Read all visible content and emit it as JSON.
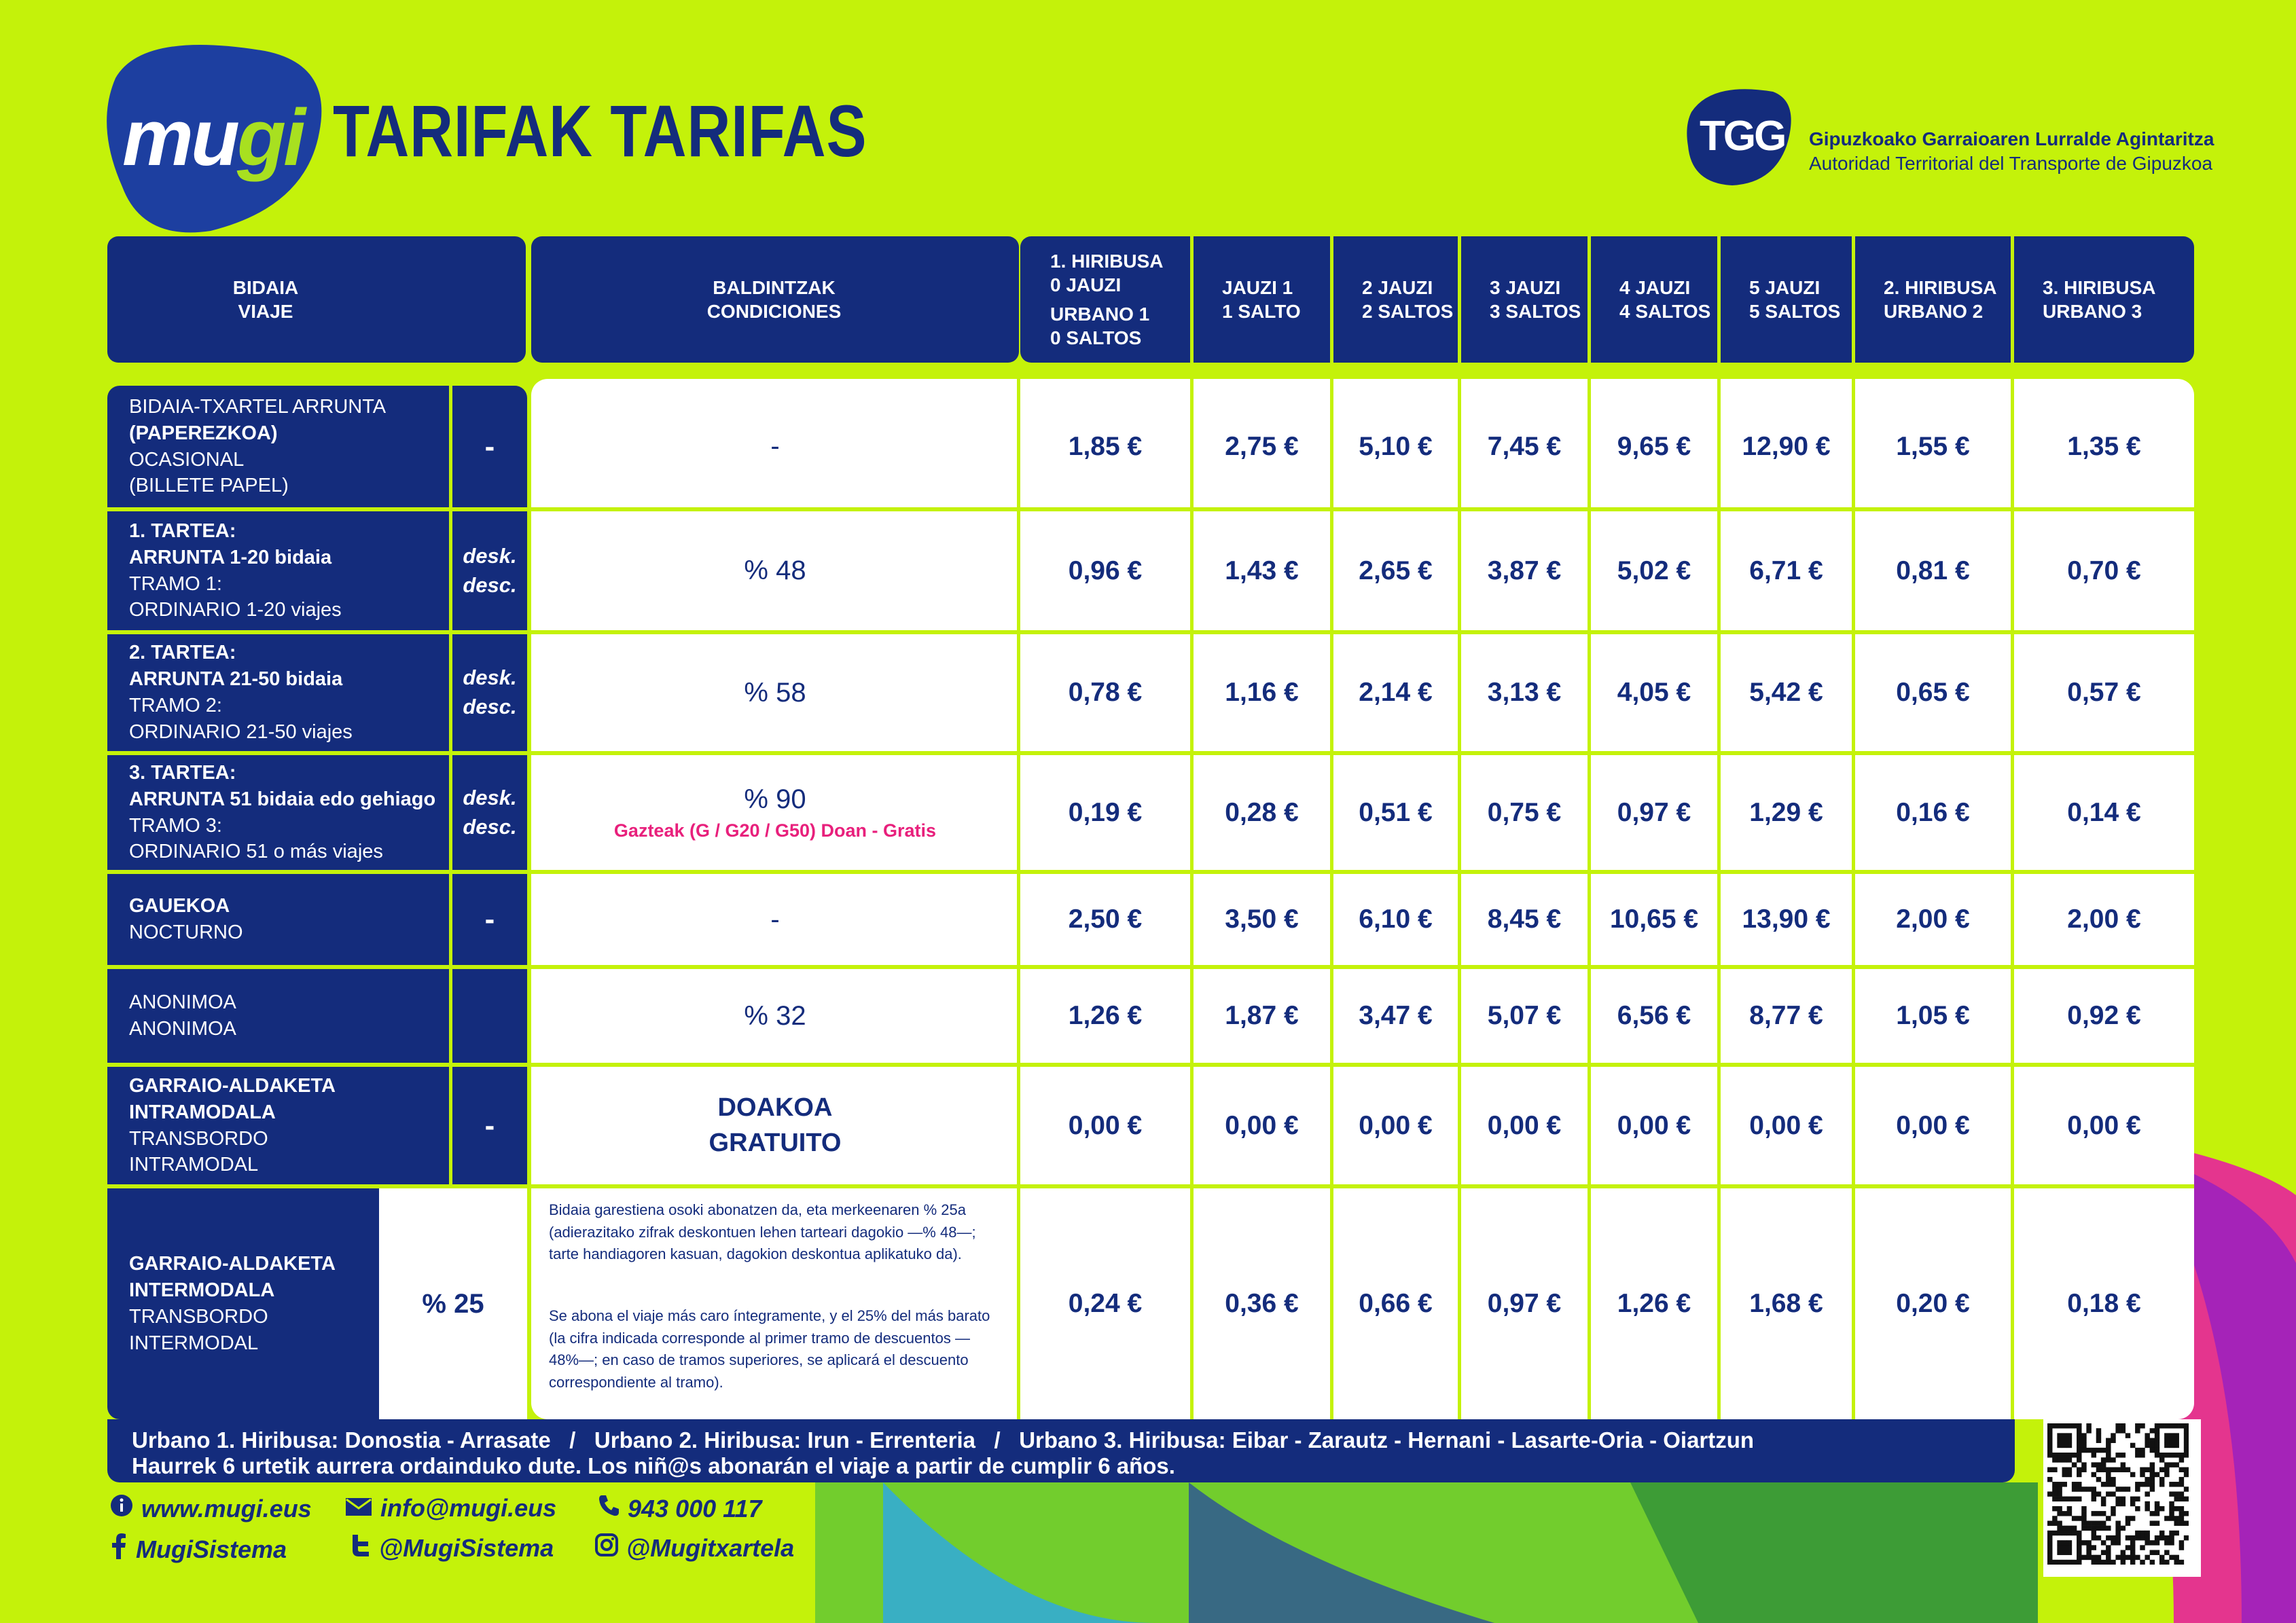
{
  "brand": {
    "logo_text_a": "mu",
    "logo_text_b": "gi",
    "title": "TARIFAK TARIFAS",
    "authority_badge": "TGG",
    "authority_name_eu": "Gipuzkoako Garraioaren Lurralde Agintaritza",
    "authority_name_es": "Autoridad Territorial del Transporte de Gipuzkoa"
  },
  "colors": {
    "background": "#c4f20a",
    "navy": "#142c7c",
    "pink": "#e8207c",
    "white": "#ffffff"
  },
  "header": {
    "travel": [
      "BIDAIA",
      "VIAJE"
    ],
    "conditions": [
      "BALDINTZAK",
      "CONDICIONES"
    ],
    "fares": [
      [
        "1. HIRIBUSA",
        "0 JAUZI",
        "URBANO 1",
        "0 SALTOS"
      ],
      [
        "JAUZI 1",
        "1 SALTO"
      ],
      [
        "2 JAUZI",
        "2 SALTOS"
      ],
      [
        "3 JAUZI",
        "3 SALTOS"
      ],
      [
        "4 JAUZI",
        "4 SALTOS"
      ],
      [
        "5 JAUZI",
        "5 SALTOS"
      ],
      [
        "2. HIRIBUSA",
        "URBANO 2"
      ],
      [
        "3. HIRIBUSA",
        "URBANO 3"
      ]
    ]
  },
  "rows": [
    {
      "travel": [
        {
          "t": "BIDAIA-TXARTEL ARRUNTA",
          "b": false
        },
        {
          "t": "(PAPEREZKOA)",
          "b": true
        },
        {
          "t": "OCASIONAL",
          "b": false
        },
        {
          "t": "(BILLETE PAPEL)",
          "b": false
        }
      ],
      "mark": [
        "-"
      ],
      "condition": "-",
      "prices": [
        "1,85 €",
        "2,75 €",
        "5,10 €",
        "7,45 €",
        "9,65 €",
        "12,90 €",
        "1,55 €",
        "1,35 €"
      ]
    },
    {
      "travel": [
        {
          "t": "1. TARTEA:",
          "b": true
        },
        {
          "t": "ARRUNTA 1-20 bidaia",
          "b": true
        },
        {
          "t": "TRAMO 1:",
          "b": false
        },
        {
          "t": "ORDINARIO 1-20 viajes",
          "b": false
        }
      ],
      "mark": [
        "desk.",
        "desc."
      ],
      "condition": "% 48",
      "prices": [
        "0,96 €",
        "1,43 €",
        "2,65 €",
        "3,87 €",
        "5,02 €",
        "6,71 €",
        "0,81 €",
        "0,70 €"
      ]
    },
    {
      "travel": [
        {
          "t": "2. TARTEA:",
          "b": true
        },
        {
          "t": "ARRUNTA 21-50 bidaia",
          "b": true
        },
        {
          "t": "TRAMO 2:",
          "b": false
        },
        {
          "t": "ORDINARIO 21-50 viajes",
          "b": false
        }
      ],
      "mark": [
        "desk.",
        "desc."
      ],
      "condition": "% 58",
      "prices": [
        "0,78 €",
        "1,16 €",
        "2,14 €",
        "3,13 €",
        "4,05 €",
        "5,42 €",
        "0,65 €",
        "0,57 €"
      ]
    },
    {
      "travel": [
        {
          "t": "3. TARTEA:",
          "b": true
        },
        {
          "t": "ARRUNTA 51 bidaia edo gehiago",
          "b": true
        },
        {
          "t": "TRAMO 3:",
          "b": false
        },
        {
          "t": "ORDINARIO 51 o más viajes",
          "b": false
        }
      ],
      "mark": [
        "desk.",
        "desc."
      ],
      "condition": "% 90",
      "condition_note": "Gazteak (G / G20 / G50) Doan - Gratis",
      "prices": [
        "0,19 €",
        "0,28 €",
        "0,51 €",
        "0,75 €",
        "0,97 €",
        "1,29 €",
        "0,16 €",
        "0,14 €"
      ]
    },
    {
      "travel": [
        {
          "t": "GAUEKOA",
          "b": true
        },
        {
          "t": "NOCTURNO",
          "b": false
        }
      ],
      "mark": [
        "-"
      ],
      "condition": "-",
      "prices": [
        "2,50 €",
        "3,50 €",
        "6,10 €",
        "8,45 €",
        "10,65 €",
        "13,90 €",
        "2,00 €",
        "2,00 €"
      ]
    },
    {
      "travel": [
        {
          "t": "ANONIMOA",
          "b": false
        },
        {
          "t": "ANONIMOA",
          "b": false
        }
      ],
      "mark": [],
      "condition": "% 32",
      "prices": [
        "1,26 €",
        "1,87 €",
        "3,47 €",
        "5,07 €",
        "6,56 €",
        "8,77 €",
        "1,05 €",
        "0,92 €"
      ]
    },
    {
      "travel": [
        {
          "t": "GARRAIO-ALDAKETA",
          "b": true
        },
        {
          "t": "INTRAMODALA",
          "b": true
        },
        {
          "t": "TRANSBORDO",
          "b": false
        },
        {
          "t": "INTRAMODAL",
          "b": false
        }
      ],
      "mark": [
        "-"
      ],
      "condition_free": [
        "DOAKOA",
        "GRATUITO"
      ],
      "prices": [
        "0,00 €",
        "0,00 €",
        "0,00 €",
        "0,00 €",
        "0,00 €",
        "0,00 €",
        "0,00 €",
        "0,00 €"
      ]
    },
    {
      "travel": [
        {
          "t": "GARRAIO-ALDAKETA",
          "b": true
        },
        {
          "t": "INTERMODALA",
          "b": true
        },
        {
          "t": "TRANSBORDO",
          "b": false
        },
        {
          "t": "INTERMODAL",
          "b": false
        }
      ],
      "mark": [],
      "inter_pct": "% 25",
      "note_eu": "Bidaia garestiena osoki abonatzen da, eta merkeenaren % 25a (adierazitako zifrak deskontuen lehen tarteari dagokio —% 48—; tarte handiagoren kasuan, dagokion deskontua aplikatuko da).",
      "note_es": "Se abona el viaje más caro íntegramente, y el 25% del más barato (la cifra indicada corresponde al primer tramo de descuentos —48%—; en caso de tramos superiores, se aplicará el descuento correspondiente al tramo).",
      "prices": [
        "0,24 €",
        "0,36 €",
        "0,66 €",
        "0,97 €",
        "1,26 €",
        "1,68 €",
        "0,20 €",
        "0,18 €"
      ]
    }
  ],
  "footer": {
    "routes": "Urbano 1. Hiribusa: Donostia - Arrasate   /   Urbano 2. Hiribusa: Irun - Errenteria   /   Urbano 3. Hiribusa: Eibar - Zarautz - Hernani - Lasarte-Oria - Oiartzun",
    "children": "Haurrek 6 urtetik aurrera ordainduko dute. Los niñ@s abonarán el viaje a partir de cumplir 6 años."
  },
  "contacts": {
    "web": "www.mugi.eus",
    "email": "info@mugi.eus",
    "phone": "943 000 117",
    "facebook": "MugiSistema",
    "twitter": "@MugiSistema",
    "instagram": "@Mugitxartela"
  },
  "icons": {
    "web": "info-icon",
    "email": "envelope-icon",
    "phone": "phone-icon",
    "facebook": "facebook-icon",
    "twitter": "twitter-icon",
    "instagram": "instagram-icon",
    "qr": "qr-code"
  }
}
